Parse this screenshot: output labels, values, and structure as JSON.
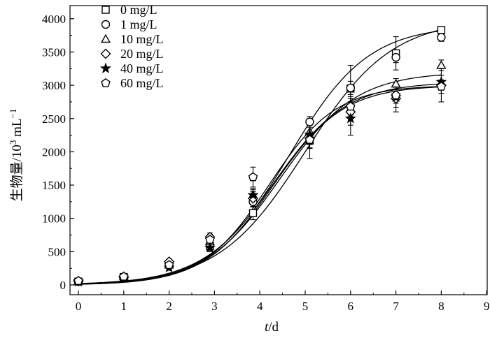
{
  "chart_data": {
    "type": "scatter",
    "xlabel": {
      "italic": "t",
      "rest": "/d"
    },
    "ylabel": {
      "main": "生物量/10",
      "sup3": "3",
      "unit": " mL",
      "supneg": "−1"
    },
    "xlim": [
      0,
      9
    ],
    "ylim": [
      0,
      4200
    ],
    "x_ticks": [
      "0",
      "1",
      "2",
      "3",
      "4",
      "5",
      "6",
      "7",
      "8",
      "9"
    ],
    "y_ticks": [
      "0",
      "500",
      "1000",
      "1500",
      "2000",
      "2500",
      "3000",
      "3500",
      "4000"
    ],
    "legend_position": "top-left",
    "series": [
      {
        "name": "0 mg/L",
        "marker": "square",
        "x": [
          0,
          1,
          2,
          2.9,
          3.85,
          5.1,
          6,
          7,
          8
        ],
        "y": [
          50,
          120,
          310,
          580,
          1080,
          2170,
          2950,
          3480,
          3830
        ],
        "err": [
          20,
          30,
          40,
          60,
          100,
          120,
          350,
          250,
          50
        ],
        "fit": {
          "K": 4000,
          "r": 1.05,
          "x0": 5.0,
          "c": 0
        }
      },
      {
        "name": "1 mg/L",
        "marker": "circle",
        "x": [
          0,
          1,
          2,
          2.9,
          3.85,
          5.1,
          6,
          7,
          8
        ],
        "y": [
          55,
          110,
          330,
          700,
          1250,
          2450,
          2960,
          3420,
          3720
        ],
        "err": [
          20,
          30,
          40,
          60,
          80,
          80,
          100,
          80,
          60
        ],
        "fit": {
          "K": 3900,
          "r": 1.15,
          "x0": 4.65,
          "c": 0
        }
      },
      {
        "name": "10 mg/L",
        "marker": "triangle",
        "x": [
          0,
          1,
          2,
          2.9,
          3.85,
          5.1,
          6,
          7,
          8
        ],
        "y": [
          60,
          130,
          300,
          650,
          1350,
          2300,
          2650,
          3020,
          3300
        ],
        "err": [
          20,
          30,
          40,
          60,
          80,
          100,
          100,
          80,
          80
        ],
        "fit": {
          "K": 3200,
          "r": 1.2,
          "x0": 4.45,
          "c": 0
        }
      },
      {
        "name": "20 mg/L",
        "marker": "diamond",
        "x": [
          0,
          1,
          2,
          2.9,
          3.85,
          5.1,
          6,
          7,
          8
        ],
        "y": [
          55,
          115,
          350,
          720,
          1300,
          2200,
          2600,
          2800,
          3000
        ],
        "err": [
          20,
          30,
          40,
          60,
          100,
          300,
          200,
          200,
          250
        ],
        "fit": {
          "K": 3050,
          "r": 1.25,
          "x0": 4.3,
          "c": 0
        }
      },
      {
        "name": "40 mg/L",
        "marker": "star",
        "x": [
          0,
          1,
          2,
          2.9,
          3.85,
          5.1,
          6,
          7,
          8
        ],
        "y": [
          50,
          100,
          260,
          560,
          1350,
          2260,
          2500,
          2820,
          3050
        ],
        "err": [
          20,
          30,
          40,
          60,
          100,
          150,
          250,
          150,
          100
        ],
        "fit": {
          "K": 3000,
          "r": 1.3,
          "x0": 4.3,
          "c": 0
        }
      },
      {
        "name": "60 mg/L",
        "marker": "pentagon",
        "x": [
          0,
          1,
          2,
          2.9,
          3.85,
          5.1,
          6,
          7,
          8
        ],
        "y": [
          60,
          125,
          300,
          680,
          1620,
          2180,
          2680,
          2850,
          2980
        ],
        "err": [
          20,
          30,
          40,
          60,
          150,
          120,
          150,
          120,
          100
        ],
        "fit": {
          "K": 3000,
          "r": 1.35,
          "x0": 4.2,
          "c": 0
        }
      }
    ]
  }
}
